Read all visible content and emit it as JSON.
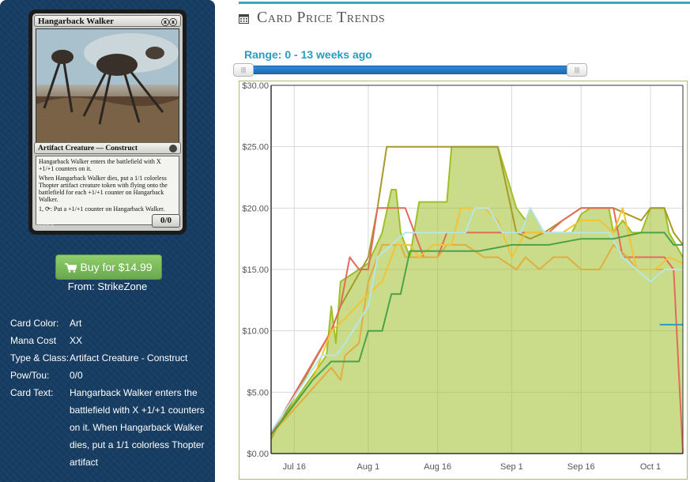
{
  "card": {
    "name": "Hangarback Walker",
    "mana_symbols": "ⓧⓧ",
    "type_line": "Artifact Creature — Construct",
    "rules_text": [
      "Hangarback Walker enters the battlefield with X +1/+1 counters on it.",
      "When Hangarback Walker dies, put a 1/1 colorless Thopter artifact creature token with flying onto the battlefield for each +1/+1 counter on Hangarback Walker.",
      "1, ⟳: Put a +1/+1 counter on Hangarback Walker."
    ],
    "pt": "0/0",
    "collector": "229/272 R"
  },
  "buy": {
    "label": "Buy for $14.99",
    "from": "From: StrikeZone"
  },
  "details": [
    {
      "label": "Card Color:",
      "value": "Art"
    },
    {
      "label": "Mana Cost",
      "value": "XX"
    },
    {
      "label": "Type & Class:",
      "value": "Artifact Creature - Construct"
    },
    {
      "label": "Pow/Tou:",
      "value": "0/0"
    },
    {
      "label": "Card Text:",
      "value": "Hangarback Walker enters the battlefield with X +1/+1 counters on it. When Hangarback Walker dies, put a 1/1 colorless Thopter artifact"
    }
  ],
  "section": {
    "title": "Card Price Trends",
    "range_label": "Range: 0 - 13 weeks ago"
  },
  "chart_data": {
    "type": "line",
    "ylim": [
      0,
      30
    ],
    "yticks": [
      0,
      5,
      10,
      15,
      20,
      25,
      30
    ],
    "ytick_labels": [
      "$0.00",
      "$5.00",
      "$10.00",
      "$15.00",
      "$20.00",
      "$25.00",
      "$30.00"
    ],
    "x_range": [
      "2015-07-11",
      "2015-10-08"
    ],
    "xticks": [
      "2015-07-16",
      "2015-08-01",
      "2015-08-16",
      "2015-09-01",
      "2015-09-16",
      "2015-10-01"
    ],
    "xtick_labels": [
      "Jul 16",
      "Aug 1",
      "Aug 16",
      "Sep 1",
      "Sep 16",
      "Oct 1"
    ],
    "grid": true,
    "series": [
      {
        "color": "#9fbf28",
        "filled": true,
        "points": [
          [
            "2015-07-11",
            1.5
          ],
          [
            "2015-07-23",
            8
          ],
          [
            "2015-07-24",
            12
          ],
          [
            "2015-07-25",
            9
          ],
          [
            "2015-07-26",
            14
          ],
          [
            "2015-07-30",
            15
          ],
          [
            "2015-08-01",
            15.5
          ],
          [
            "2015-08-04",
            18
          ],
          [
            "2015-08-06",
            21.5
          ],
          [
            "2015-08-07",
            21.5
          ],
          [
            "2015-08-08",
            18
          ],
          [
            "2015-08-10",
            16
          ],
          [
            "2015-08-12",
            20.5
          ],
          [
            "2015-08-16",
            20.5
          ],
          [
            "2015-08-18",
            20.5
          ],
          [
            "2015-08-19",
            25
          ],
          [
            "2015-08-29",
            25
          ],
          [
            "2015-09-02",
            20
          ],
          [
            "2015-09-04",
            19
          ],
          [
            "2015-09-05",
            20
          ],
          [
            "2015-09-08",
            18
          ],
          [
            "2015-09-14",
            18
          ],
          [
            "2015-09-16",
            19.5
          ],
          [
            "2015-09-18",
            20
          ],
          [
            "2015-09-22",
            20
          ],
          [
            "2015-09-23",
            18
          ],
          [
            "2015-09-25",
            19
          ],
          [
            "2015-09-27",
            18
          ],
          [
            "2015-09-29",
            18
          ],
          [
            "2015-10-01",
            20
          ],
          [
            "2015-10-04",
            20
          ],
          [
            "2015-10-05",
            18
          ],
          [
            "2015-10-08",
            16
          ]
        ]
      },
      {
        "color": "#a89a2a",
        "filled": false,
        "points": [
          [
            "2015-07-11",
            1.2
          ],
          [
            "2015-07-24",
            10
          ],
          [
            "2015-07-26",
            12
          ],
          [
            "2015-07-29",
            14
          ],
          [
            "2015-08-01",
            16
          ],
          [
            "2015-08-03",
            20
          ],
          [
            "2015-08-05",
            25
          ],
          [
            "2015-08-10",
            25
          ],
          [
            "2015-08-29",
            25
          ],
          [
            "2015-09-02",
            18
          ],
          [
            "2015-09-05",
            17.5
          ],
          [
            "2015-09-08",
            18
          ],
          [
            "2015-09-12",
            19
          ],
          [
            "2015-09-16",
            20
          ],
          [
            "2015-09-23",
            20
          ],
          [
            "2015-09-29",
            19
          ],
          [
            "2015-10-01",
            20
          ],
          [
            "2015-10-04",
            20
          ],
          [
            "2015-10-06",
            18
          ],
          [
            "2015-10-08",
            17
          ]
        ]
      },
      {
        "color": "#e46a5a",
        "filled": false,
        "points": [
          [
            "2015-07-11",
            1.6
          ],
          [
            "2015-07-24",
            10
          ],
          [
            "2015-07-26",
            12
          ],
          [
            "2015-07-28",
            16
          ],
          [
            "2015-07-30",
            15
          ],
          [
            "2015-08-01",
            15
          ],
          [
            "2015-08-03",
            20
          ],
          [
            "2015-08-09",
            20
          ],
          [
            "2015-08-11",
            18
          ],
          [
            "2015-08-13",
            16
          ],
          [
            "2015-08-16",
            16
          ],
          [
            "2015-08-18",
            18
          ],
          [
            "2015-08-26",
            18
          ],
          [
            "2015-09-02",
            18
          ],
          [
            "2015-09-09",
            18
          ],
          [
            "2015-09-12",
            19
          ],
          [
            "2015-09-16",
            20
          ],
          [
            "2015-09-23",
            20
          ],
          [
            "2015-09-25",
            16
          ],
          [
            "2015-10-04",
            16
          ],
          [
            "2015-10-06",
            15
          ],
          [
            "2015-10-08",
            0
          ]
        ]
      },
      {
        "color": "#e0ae3e",
        "filled": false,
        "points": [
          [
            "2015-07-11",
            1.5
          ],
          [
            "2015-07-24",
            7
          ],
          [
            "2015-07-26",
            6
          ],
          [
            "2015-07-27",
            8
          ],
          [
            "2015-07-30",
            9
          ],
          [
            "2015-08-01",
            14
          ],
          [
            "2015-08-04",
            17
          ],
          [
            "2015-08-08",
            17
          ],
          [
            "2015-08-09",
            16
          ],
          [
            "2015-08-12",
            16
          ],
          [
            "2015-08-16",
            16
          ],
          [
            "2015-08-18",
            17
          ],
          [
            "2015-08-22",
            17
          ],
          [
            "2015-08-26",
            16
          ],
          [
            "2015-08-29",
            16
          ],
          [
            "2015-09-02",
            15
          ],
          [
            "2015-09-04",
            16
          ],
          [
            "2015-09-07",
            15
          ],
          [
            "2015-09-10",
            16
          ],
          [
            "2015-09-13",
            16
          ],
          [
            "2015-09-16",
            15
          ],
          [
            "2015-09-20",
            15
          ],
          [
            "2015-09-23",
            17
          ],
          [
            "2015-09-26",
            16
          ],
          [
            "2015-09-28",
            15
          ],
          [
            "2015-10-02",
            15
          ],
          [
            "2015-10-06",
            15
          ],
          [
            "2015-10-08",
            15
          ]
        ]
      },
      {
        "color": "#f2c335",
        "filled": false,
        "points": [
          [
            "2015-07-11",
            1.4
          ],
          [
            "2015-07-20",
            6
          ],
          [
            "2015-07-24",
            10
          ],
          [
            "2015-07-27",
            11
          ],
          [
            "2015-08-01",
            13
          ],
          [
            "2015-08-04",
            14
          ],
          [
            "2015-08-07",
            17
          ],
          [
            "2015-08-10",
            17
          ],
          [
            "2015-08-12",
            16
          ],
          [
            "2015-08-15",
            17
          ],
          [
            "2015-08-19",
            17
          ],
          [
            "2015-08-21",
            20
          ],
          [
            "2015-08-26",
            20
          ],
          [
            "2015-08-29",
            19
          ],
          [
            "2015-09-01",
            16
          ],
          [
            "2015-09-04",
            18
          ],
          [
            "2015-09-08",
            18
          ],
          [
            "2015-09-12",
            18
          ],
          [
            "2015-09-16",
            19
          ],
          [
            "2015-09-20",
            19
          ],
          [
            "2015-09-23",
            18
          ],
          [
            "2015-09-25",
            20
          ],
          [
            "2015-09-28",
            15
          ],
          [
            "2015-10-02",
            15
          ],
          [
            "2015-10-05",
            16
          ],
          [
            "2015-10-08",
            15.5
          ]
        ]
      },
      {
        "color": "#b7e6e8",
        "filled": false,
        "points": [
          [
            "2015-07-11",
            1.8
          ],
          [
            "2015-07-22",
            8
          ],
          [
            "2015-07-25",
            8
          ],
          [
            "2015-07-27",
            9
          ],
          [
            "2015-08-01",
            12
          ],
          [
            "2015-08-03",
            16
          ],
          [
            "2015-08-06",
            17
          ],
          [
            "2015-08-09",
            18
          ],
          [
            "2015-08-20",
            18
          ],
          [
            "2015-08-22",
            18
          ],
          [
            "2015-08-24",
            20
          ],
          [
            "2015-08-27",
            20
          ],
          [
            "2015-08-30",
            18
          ],
          [
            "2015-09-03",
            18
          ],
          [
            "2015-09-05",
            20
          ],
          [
            "2015-09-08",
            18
          ],
          [
            "2015-09-14",
            18
          ],
          [
            "2015-09-18",
            18
          ],
          [
            "2015-09-22",
            18
          ],
          [
            "2015-09-25",
            16
          ],
          [
            "2015-09-28",
            15
          ],
          [
            "2015-10-01",
            14
          ],
          [
            "2015-10-04",
            15
          ],
          [
            "2015-10-08",
            15
          ]
        ]
      },
      {
        "color": "#4aa24a",
        "filled": false,
        "points": [
          [
            "2015-07-11",
            1.5
          ],
          [
            "2015-07-20",
            6
          ],
          [
            "2015-07-24",
            7.5
          ],
          [
            "2015-07-30",
            7.5
          ],
          [
            "2015-08-01",
            10
          ],
          [
            "2015-08-04",
            10
          ],
          [
            "2015-08-06",
            13
          ],
          [
            "2015-08-08",
            13
          ],
          [
            "2015-08-10",
            16.5
          ],
          [
            "2015-08-16",
            16.5
          ],
          [
            "2015-08-25",
            16.5
          ],
          [
            "2015-09-01",
            17
          ],
          [
            "2015-09-09",
            17
          ],
          [
            "2015-09-16",
            17.5
          ],
          [
            "2015-09-23",
            17.5
          ],
          [
            "2015-09-29",
            18
          ],
          [
            "2015-10-04",
            18
          ],
          [
            "2015-10-06",
            17
          ],
          [
            "2015-10-08",
            17
          ]
        ]
      },
      {
        "color": "#2a9bc4",
        "filled": false,
        "points": [
          [
            "2015-10-03",
            10.5
          ],
          [
            "2015-10-08",
            10.5
          ]
        ]
      }
    ]
  }
}
